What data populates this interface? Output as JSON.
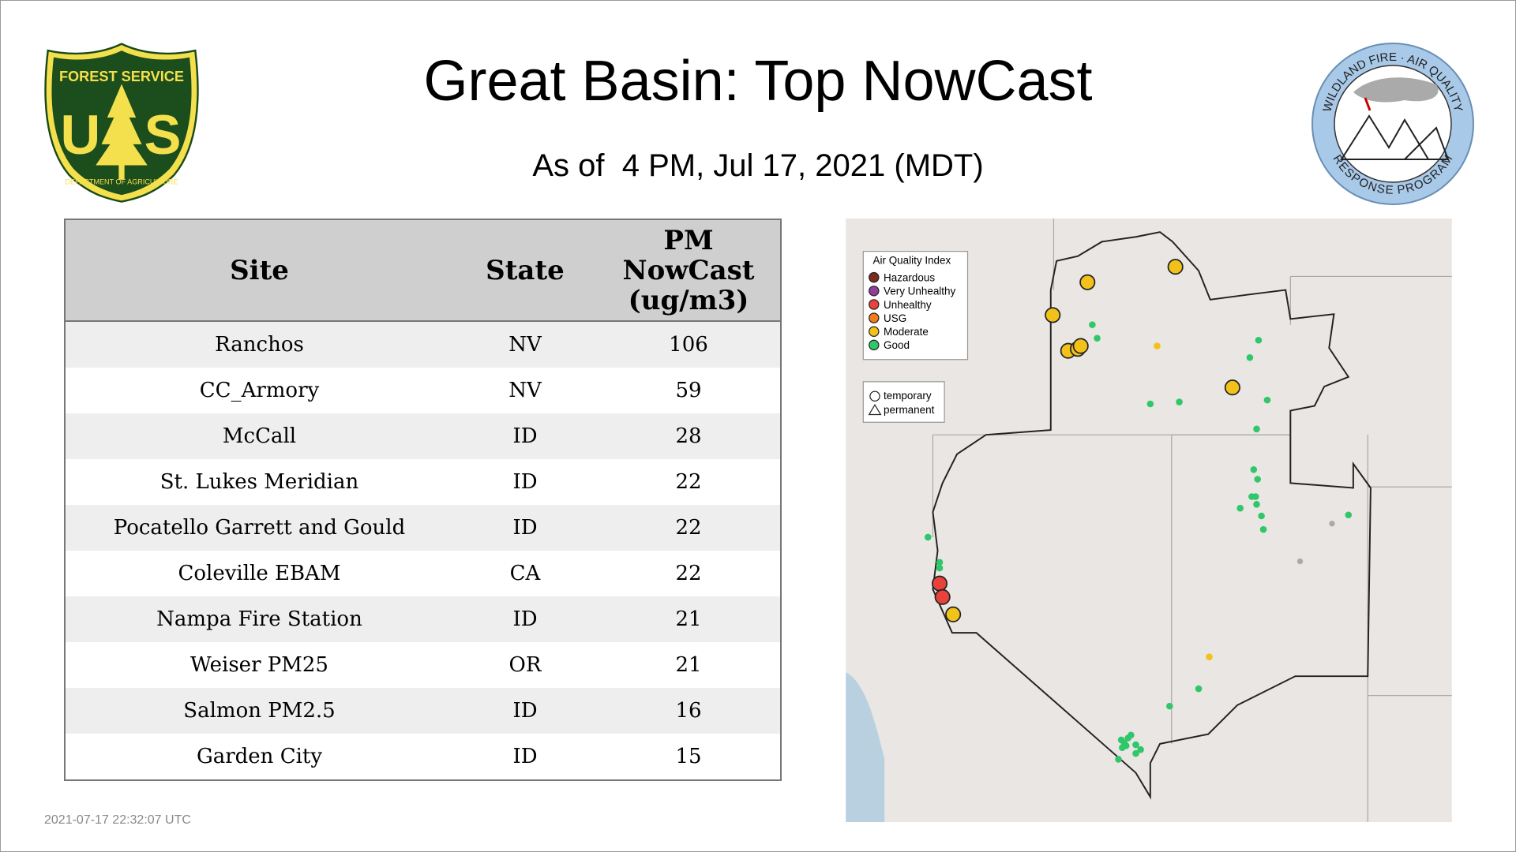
{
  "header": {
    "title": "Great Basin: Top NowCast",
    "subtitle": "As of  4 PM, Jul 17, 2021 (MDT)"
  },
  "logos": {
    "forest_service": {
      "top": "FOREST SERVICE",
      "left": "U",
      "right": "S",
      "bottom": "DEPARTMENT OF AGRICULTURE"
    },
    "wfaq": {
      "top": "WILDLAND FIRE · AIR QUALITY",
      "bottom": "RESPONSE PROGRAM"
    }
  },
  "table": {
    "columns": [
      "Site",
      "State",
      "PM NowCast (ug/m3)"
    ],
    "rows": [
      [
        "Ranchos",
        "NV",
        106
      ],
      [
        "CC_Armory",
        "NV",
        59
      ],
      [
        "McCall",
        "ID",
        28
      ],
      [
        "St. Lukes Meridian",
        "ID",
        22
      ],
      [
        "Pocatello Garrett and Gould",
        "ID",
        22
      ],
      [
        "Coleville EBAM",
        "CA",
        22
      ],
      [
        "Nampa Fire Station",
        "ID",
        21
      ],
      [
        "Weiser PM25",
        "OR",
        21
      ],
      [
        "Salmon PM2.5",
        "ID",
        16
      ],
      [
        "Garden City",
        "ID",
        15
      ]
    ]
  },
  "map": {
    "legend": {
      "title": "Air Quality Index",
      "items": [
        {
          "label": "Hazardous",
          "color": "#7e2a1e"
        },
        {
          "label": "Very Unhealthy",
          "color": "#8f3f97"
        },
        {
          "label": "Unhealthy",
          "color": "#e8423a"
        },
        {
          "label": "USG",
          "color": "#f07c1a"
        },
        {
          "label": "Moderate",
          "color": "#f2c21a"
        },
        {
          "label": "Good",
          "color": "#2fc76a"
        }
      ],
      "shapes": [
        "temporary",
        "permanent"
      ]
    }
  },
  "footer": {
    "timestamp": "2021-07-17 22:32:07 UTC"
  }
}
